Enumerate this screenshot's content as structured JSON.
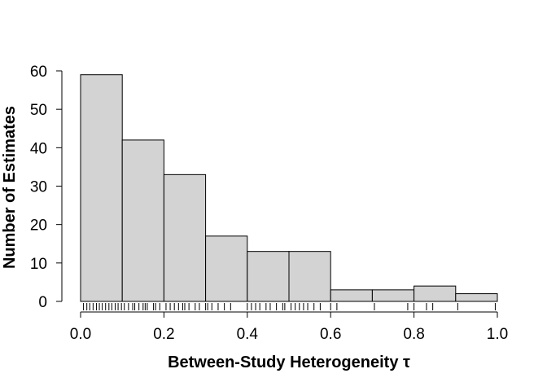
{
  "chart_data": {
    "type": "bar",
    "title": "",
    "xlabel": "Between-Study Heterogeneity τ",
    "ylabel": "Number of Estimates",
    "bins": [
      {
        "start": 0.0,
        "end": 0.1,
        "count": 59
      },
      {
        "start": 0.1,
        "end": 0.2,
        "count": 42
      },
      {
        "start": 0.2,
        "end": 0.3,
        "count": 33
      },
      {
        "start": 0.3,
        "end": 0.4,
        "count": 17
      },
      {
        "start": 0.4,
        "end": 0.5,
        "count": 13
      },
      {
        "start": 0.5,
        "end": 0.6,
        "count": 13
      },
      {
        "start": 0.6,
        "end": 0.7,
        "count": 3
      },
      {
        "start": 0.7,
        "end": 0.8,
        "count": 3
      },
      {
        "start": 0.8,
        "end": 0.9,
        "count": 4
      },
      {
        "start": 0.9,
        "end": 1.0,
        "count": 2
      }
    ],
    "xlim": [
      0,
      1.0
    ],
    "ylim": [
      0,
      60
    ],
    "x_ticks": [
      0.0,
      0.2,
      0.4,
      0.6,
      0.8,
      1.0
    ],
    "x_tick_labels": [
      "0.0",
      "0.2",
      "0.4",
      "0.6",
      "0.8",
      "1.0"
    ],
    "y_ticks": [
      0,
      10,
      20,
      30,
      40,
      50,
      60
    ],
    "y_tick_labels": [
      "0",
      "10",
      "20",
      "30",
      "40",
      "50",
      "60"
    ],
    "rug": [
      0.007,
      0.015,
      0.022,
      0.03,
      0.038,
      0.045,
      0.052,
      0.06,
      0.068,
      0.075,
      0.083,
      0.09,
      0.098,
      0.105,
      0.115,
      0.125,
      0.13,
      0.14,
      0.15,
      0.155,
      0.16,
      0.175,
      0.18,
      0.19,
      0.205,
      0.215,
      0.225,
      0.235,
      0.245,
      0.25,
      0.26,
      0.275,
      0.285,
      0.3,
      0.305,
      0.315,
      0.33,
      0.345,
      0.36,
      0.4,
      0.41,
      0.42,
      0.43,
      0.445,
      0.455,
      0.47,
      0.485,
      0.49,
      0.505,
      0.515,
      0.525,
      0.535,
      0.545,
      0.56,
      0.575,
      0.6,
      0.615,
      0.705,
      0.785,
      0.8,
      0.83,
      0.845,
      0.905,
      0.995
    ],
    "grid": false,
    "legend": "none"
  }
}
